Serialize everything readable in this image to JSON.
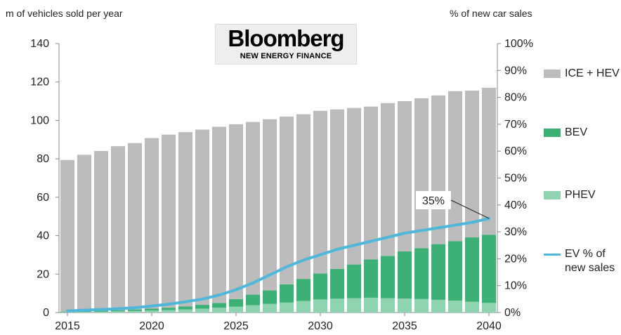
{
  "chart_data": {
    "type": "bar",
    "subtype": "stacked-bar-with-line",
    "y_left_label": "m of vehicles sold per year",
    "y_right_label": "% of new car sales",
    "x_ticks": [
      "2015",
      "2020",
      "2025",
      "2030",
      "2035",
      "2040"
    ],
    "y_left_ticks": [
      "0",
      "20",
      "40",
      "60",
      "80",
      "100",
      "120",
      "140"
    ],
    "y_right_ticks": [
      "0%",
      "10%",
      "20%",
      "30%",
      "40%",
      "50%",
      "60%",
      "70%",
      "80%",
      "90%",
      "100%"
    ],
    "ylim_left": [
      0,
      140
    ],
    "ylim_right": [
      0,
      100
    ],
    "years": [
      2015,
      2016,
      2017,
      2018,
      2019,
      2020,
      2021,
      2022,
      2023,
      2024,
      2025,
      2026,
      2027,
      2028,
      2029,
      2030,
      2031,
      2032,
      2033,
      2034,
      2035,
      2036,
      2037,
      2038,
      2039,
      2040
    ],
    "series": [
      {
        "name": "PHEV",
        "color": "#8fd3b0",
        "values": [
          0.2,
          0.3,
          0.4,
          0.6,
          0.8,
          1.0,
          1.3,
          1.6,
          2.0,
          2.5,
          3.0,
          3.8,
          4.5,
          5.2,
          6.0,
          6.8,
          7.2,
          7.5,
          7.7,
          7.5,
          7.3,
          7.0,
          6.6,
          6.2,
          5.6,
          5.0
        ]
      },
      {
        "name": "BEV",
        "color": "#3cb075",
        "values": [
          0.3,
          0.4,
          0.5,
          0.6,
          0.8,
          1.0,
          1.2,
          1.6,
          2.0,
          2.5,
          4.0,
          5.5,
          7.0,
          9.5,
          11.5,
          13.5,
          15.5,
          17.5,
          20.0,
          22.0,
          24.5,
          26.5,
          29.0,
          31.0,
          33.5,
          35.5
        ]
      },
      {
        "name": "ICE + HEV",
        "color": "#bcbcbc",
        "values": [
          78.9,
          81.4,
          83.2,
          85.4,
          86.6,
          88.8,
          90.1,
          90.7,
          91.2,
          91.7,
          91.0,
          89.9,
          89.1,
          87.3,
          85.7,
          84.7,
          83.0,
          81.5,
          79.5,
          79.5,
          78.2,
          78.0,
          77.4,
          78.0,
          76.4,
          76.5
        ]
      },
      {
        "name": "EV % of new sales",
        "color": "#4fb7d9",
        "axis": "right",
        "values": [
          0.6,
          0.9,
          1.1,
          1.4,
          1.8,
          2.4,
          3.1,
          4.0,
          5.0,
          6.5,
          8.5,
          11.0,
          14.0,
          17.0,
          19.5,
          21.5,
          23.5,
          25.0,
          26.5,
          28.0,
          29.5,
          30.5,
          31.5,
          32.5,
          33.5,
          35.0
        ]
      }
    ],
    "annotations": [
      {
        "text": "35%",
        "x": 2040,
        "y": 35
      }
    ]
  },
  "logo": {
    "word": "Bloomberg",
    "sub": "NEW ENERGY FINANCE"
  },
  "legend": [
    {
      "label": "ICE + HEV",
      "color": "#bcbcbc",
      "kind": "box"
    },
    {
      "label": "BEV",
      "color": "#3cb075",
      "kind": "box"
    },
    {
      "label": "PHEV",
      "color": "#8fd3b0",
      "kind": "box"
    },
    {
      "label": "EV % of new sales",
      "color": "#4fb7d9",
      "kind": "line"
    }
  ]
}
